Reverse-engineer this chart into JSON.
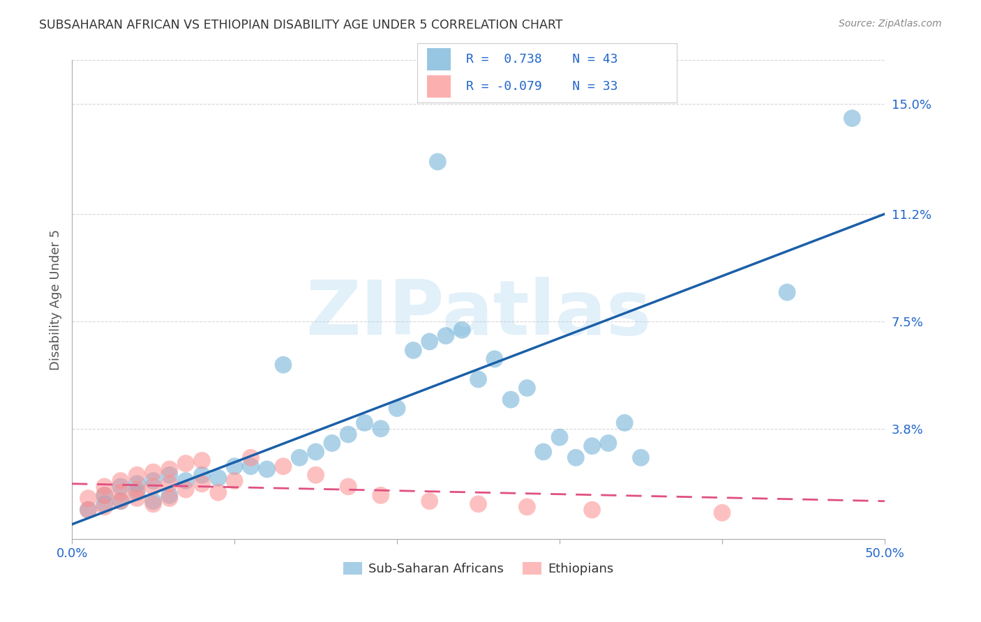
{
  "title": "SUBSAHARAN AFRICAN VS ETHIOPIAN DISABILITY AGE UNDER 5 CORRELATION CHART",
  "source": "Source: ZipAtlas.com",
  "ylabel": "Disability Age Under 5",
  "xlim": [
    0.0,
    0.5
  ],
  "ylim": [
    0.0,
    0.165
  ],
  "ytick_labels_right": [
    "15.0%",
    "11.2%",
    "7.5%",
    "3.8%"
  ],
  "ytick_values_right": [
    0.15,
    0.112,
    0.075,
    0.038
  ],
  "legend_r_blue": "R =  0.738",
  "legend_n_blue": "N = 43",
  "legend_r_pink": "R = -0.079",
  "legend_n_pink": "N = 33",
  "legend_label_blue": "Sub-Saharan Africans",
  "legend_label_pink": "Ethiopians",
  "blue_color": "#6baed6",
  "pink_color": "#fc8d8d",
  "blue_line_color": "#1a5fa8",
  "pink_line_color": "#e05080",
  "watermark": "ZIPatlas",
  "background_color": "#ffffff",
  "grid_color": "#cccccc",
  "blue_scatter_x": [
    0.01,
    0.02,
    0.02,
    0.03,
    0.03,
    0.04,
    0.04,
    0.05,
    0.05,
    0.06,
    0.06,
    0.07,
    0.08,
    0.09,
    0.1,
    0.11,
    0.12,
    0.13,
    0.14,
    0.15,
    0.16,
    0.17,
    0.18,
    0.19,
    0.2,
    0.21,
    0.22,
    0.23,
    0.24,
    0.25,
    0.26,
    0.27,
    0.28,
    0.29,
    0.3,
    0.31,
    0.32,
    0.33,
    0.34,
    0.35,
    0.225,
    0.44,
    0.48
  ],
  "blue_scatter_y": [
    0.01,
    0.012,
    0.015,
    0.013,
    0.018,
    0.016,
    0.019,
    0.013,
    0.02,
    0.015,
    0.022,
    0.02,
    0.022,
    0.021,
    0.025,
    0.025,
    0.024,
    0.06,
    0.028,
    0.03,
    0.033,
    0.036,
    0.04,
    0.038,
    0.045,
    0.065,
    0.068,
    0.07,
    0.072,
    0.055,
    0.062,
    0.048,
    0.052,
    0.03,
    0.035,
    0.028,
    0.032,
    0.033,
    0.04,
    0.028,
    0.13,
    0.085,
    0.145
  ],
  "pink_scatter_x": [
    0.01,
    0.01,
    0.02,
    0.02,
    0.02,
    0.03,
    0.03,
    0.03,
    0.04,
    0.04,
    0.04,
    0.05,
    0.05,
    0.05,
    0.06,
    0.06,
    0.06,
    0.07,
    0.07,
    0.08,
    0.08,
    0.09,
    0.1,
    0.11,
    0.13,
    0.15,
    0.17,
    0.19,
    0.22,
    0.25,
    0.28,
    0.32,
    0.4
  ],
  "pink_scatter_y": [
    0.01,
    0.014,
    0.011,
    0.015,
    0.018,
    0.013,
    0.016,
    0.02,
    0.014,
    0.017,
    0.022,
    0.012,
    0.018,
    0.023,
    0.014,
    0.019,
    0.024,
    0.017,
    0.026,
    0.019,
    0.027,
    0.016,
    0.02,
    0.028,
    0.025,
    0.022,
    0.018,
    0.015,
    0.013,
    0.012,
    0.011,
    0.01,
    0.009
  ],
  "blue_line_x": [
    0.0,
    0.5
  ],
  "blue_line_y": [
    0.005,
    0.112
  ],
  "pink_line_x": [
    0.0,
    0.5
  ],
  "pink_line_y": [
    0.019,
    0.013
  ]
}
